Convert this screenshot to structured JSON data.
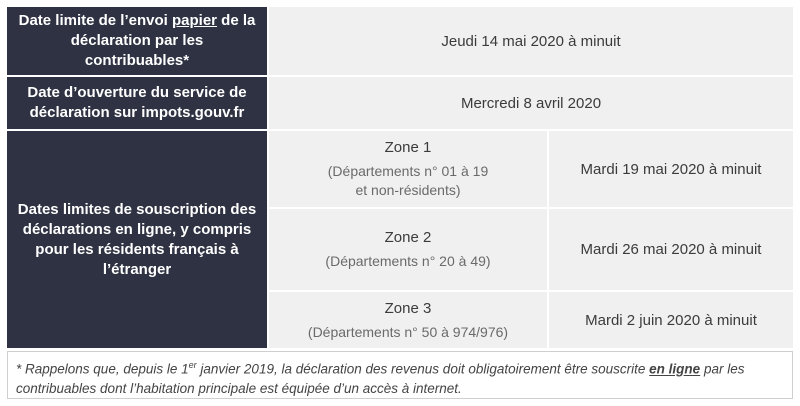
{
  "rows": {
    "paper": {
      "label_pre": "Date limite de l’envoi ",
      "label_em": "papier",
      "label_post": " de la déclaration par les contribuables*",
      "value": "Jeudi 14 mai 2020 à minuit"
    },
    "opening": {
      "label": "Date d’ouverture du service de déclaration sur impots.gouv.fr",
      "value": "Mercredi 8 avril 2020"
    },
    "online": {
      "label": "Dates limites de souscription des déclarations en ligne, y compris pour les résidents français à l’étranger",
      "zones": [
        {
          "title": "Zone 1",
          "sub_line1": "(Départements n° 01 à 19",
          "sub_line2": "et non-résidents)",
          "date": "Mardi 19 mai 2020 à minuit"
        },
        {
          "title": "Zone 2",
          "sub_line1": "(Départements n° 20 à 49)",
          "sub_line2": "",
          "date": "Mardi 26 mai 2020 à minuit"
        },
        {
          "title": "Zone 3",
          "sub_line1": "(Départements n° 50 à 974/976)",
          "sub_line2": "",
          "date": "Mardi 2 juin 2020 à minuit"
        }
      ]
    }
  },
  "footnote": {
    "part1": "* Rappelons que, depuis le 1",
    "sup": "er",
    "part2": " janvier 2019, la déclaration des revenus doit obligatoirement être souscrite ",
    "em": "en ligne",
    "part3": " par les contribuables dont l’habitation principale est équipée d’un accès à internet."
  }
}
